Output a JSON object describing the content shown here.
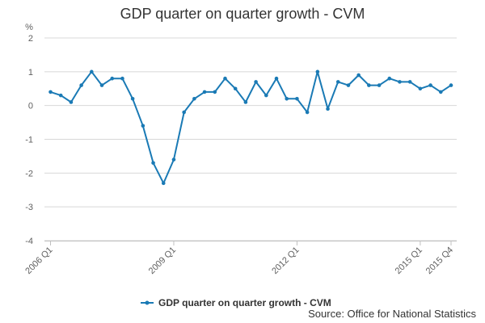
{
  "chart_data": {
    "type": "line",
    "title": "GDP quarter on quarter growth - CVM",
    "ylabel": "%",
    "xlabel": "",
    "ylim": [
      -4,
      2
    ],
    "yticks": [
      2,
      1,
      0,
      -1,
      -2,
      -3,
      -4
    ],
    "grid": true,
    "legend_position": "bottom",
    "x": [
      "2006 Q1",
      "2006 Q2",
      "2006 Q3",
      "2006 Q4",
      "2007 Q1",
      "2007 Q2",
      "2007 Q3",
      "2007 Q4",
      "2008 Q1",
      "2008 Q2",
      "2008 Q3",
      "2008 Q4",
      "2009 Q1",
      "2009 Q2",
      "2009 Q3",
      "2009 Q4",
      "2010 Q1",
      "2010 Q2",
      "2010 Q3",
      "2010 Q4",
      "2011 Q1",
      "2011 Q2",
      "2011 Q3",
      "2011 Q4",
      "2012 Q1",
      "2012 Q2",
      "2012 Q3",
      "2012 Q4",
      "2013 Q1",
      "2013 Q2",
      "2013 Q3",
      "2013 Q4",
      "2014 Q1",
      "2014 Q2",
      "2014 Q3",
      "2014 Q4",
      "2015 Q1",
      "2015 Q2",
      "2015 Q3",
      "2015 Q4"
    ],
    "xtick_labels": [
      "2006 Q1",
      "2009 Q1",
      "2012 Q1",
      "2015 Q1",
      "2015 Q4"
    ],
    "series": [
      {
        "name": "GDP quarter on quarter growth - CVM",
        "color": "#1a7ab5",
        "values": [
          0.4,
          0.3,
          0.1,
          0.6,
          1.0,
          0.6,
          0.8,
          0.8,
          0.2,
          -0.6,
          -1.7,
          -2.3,
          -1.6,
          -0.2,
          0.2,
          0.4,
          0.4,
          0.8,
          0.5,
          0.1,
          0.7,
          0.3,
          0.8,
          0.2,
          0.2,
          -0.2,
          1.0,
          -0.1,
          0.7,
          0.6,
          0.9,
          0.6,
          0.6,
          0.8,
          0.7,
          0.7,
          0.5,
          0.6,
          0.4,
          0.6
        ]
      }
    ]
  },
  "source": "Source: Office for National Statistics"
}
